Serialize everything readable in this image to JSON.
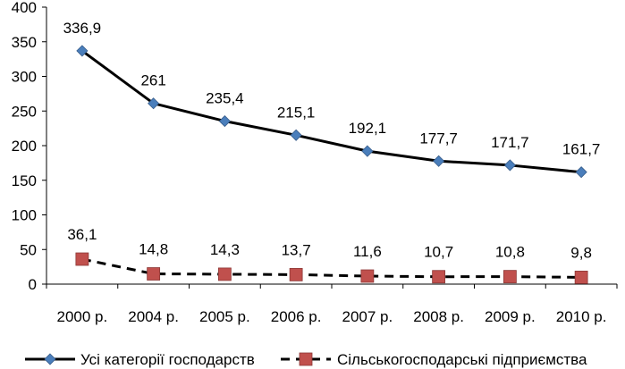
{
  "chart_data": {
    "type": "line",
    "categories": [
      "2000 р.",
      "2004 р.",
      "2005 р.",
      "2006 р.",
      "2007 р.",
      "2008 р.",
      "2009 р.",
      "2010 р."
    ],
    "ylim": [
      0,
      400
    ],
    "yticks": [
      0,
      50,
      100,
      150,
      200,
      250,
      300,
      350,
      400
    ],
    "grid": false,
    "legend_position": "bottom",
    "series": [
      {
        "name": "Усі категорії господарств",
        "values": [
          336.9,
          261,
          235.4,
          215.1,
          192.1,
          177.7,
          171.7,
          161.7
        ],
        "labels": [
          "336,9",
          "261",
          "235,4",
          "215,1",
          "192,1",
          "177,7",
          "171,7",
          "161,7"
        ],
        "line_style": "solid",
        "marker": "diamond",
        "marker_color": "#4a7ebb",
        "line_color": "#000000"
      },
      {
        "name": "Сільськогосподарські підприємства",
        "values": [
          36.1,
          14.8,
          14.3,
          13.7,
          11.6,
          10.7,
          10.8,
          9.8
        ],
        "labels": [
          "36,1",
          "14,8",
          "14,3",
          "13,7",
          "11,6",
          "10,7",
          "10,8",
          "9,8"
        ],
        "line_style": "dashed",
        "marker": "square",
        "marker_color": "#c0504d",
        "line_color": "#000000"
      }
    ]
  }
}
